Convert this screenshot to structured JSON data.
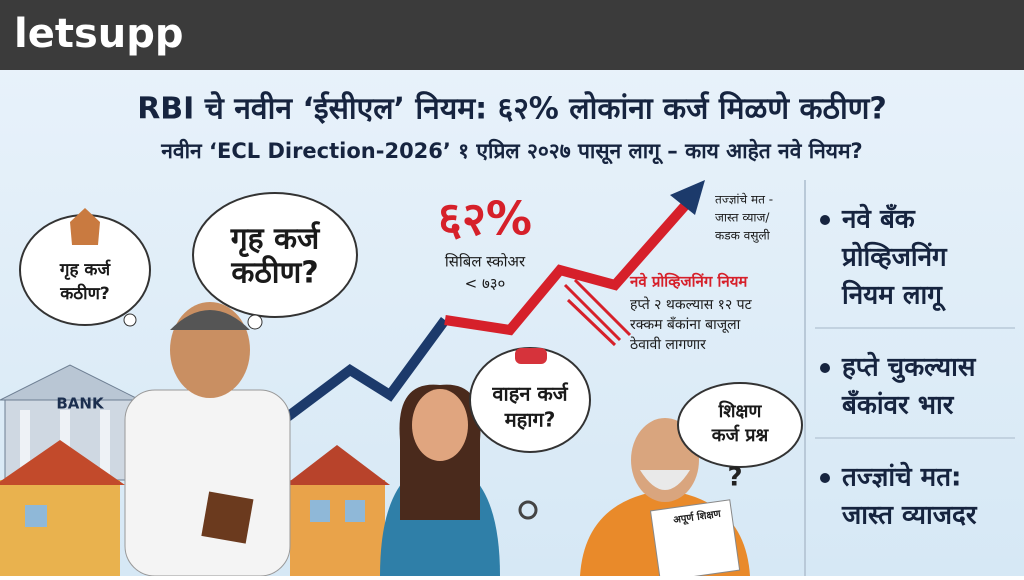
{
  "header": {
    "logo": "letsupp"
  },
  "headline": {
    "title": "RBI चे नवीन ‘ईसीएल’ नियम: ६२% लोकांना कर्ज मिळणे कठीण?",
    "subtitle": "नवीन ‘ECL Direction-2026’ १ एप्रिल २०२७ पासून लागू – काय आहेत नवे नियम?"
  },
  "illustration": {
    "bubbles": [
      {
        "lines": [
          "गृह कर्ज",
          "कठीण?"
        ]
      },
      {
        "lines": [
          "गृह कर्ज",
          "कठीण?"
        ]
      },
      {
        "lines": [
          "वाहन कर्ज",
          "महाग?"
        ]
      },
      {
        "lines": [
          "शिक्षण",
          "कर्ज प्रश्न"
        ]
      }
    ],
    "question_mark": "?",
    "stat": {
      "value": "६२%",
      "lines": [
        "सिबिल स्कोअर",
        "< ७३०"
      ]
    },
    "expert_note": [
      "तज्ज्ञांचे मत -",
      "जास्त व्याज/",
      "कडक वसुली"
    ],
    "provisioning": {
      "heading": "नवे प्रोव्हिजनिंग नियम",
      "lines": [
        "हप्ते २ थकल्यास १२ पट",
        "रक्कम बँकांना बाजूला",
        "ठेवावी लागणार"
      ]
    },
    "bank_sign": "BANK",
    "paper_label": "अपूर्ण शिक्षण"
  },
  "sidebar": {
    "points": [
      {
        "lines": [
          "नवे बँक",
          "प्रोव्हिजनिंग",
          "नियम लागू"
        ]
      },
      {
        "lines": [
          "हप्ते चुकल्यास",
          "बँकांवर भार"
        ]
      },
      {
        "lines": [
          "तज्ज्ञांचे मत:",
          "जास्त व्याजदर"
        ]
      }
    ]
  }
}
